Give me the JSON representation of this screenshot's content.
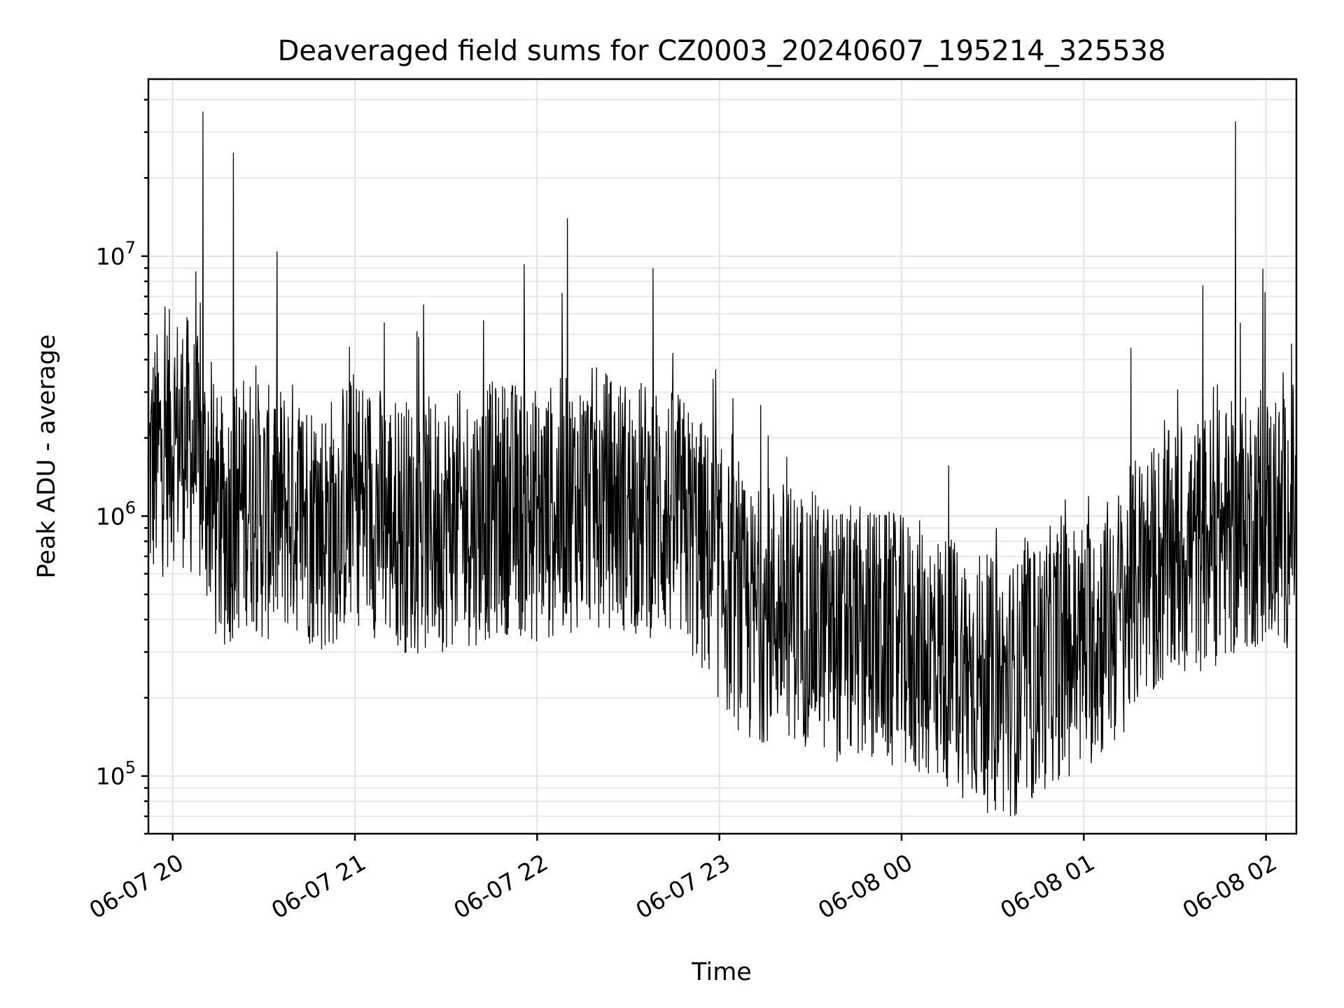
{
  "chart_data": {
    "type": "line",
    "title": "Deaveraged field sums for CZ0003_20240607_195214_325538",
    "xlabel": "Time",
    "ylabel": "Peak ADU - average",
    "yscale": "log",
    "ylim": [
      60000,
      48000000
    ],
    "xlim": [
      "2024-06-07 19:52",
      "2024-06-08 02:10"
    ],
    "grid": true,
    "x_ticks": [
      {
        "value": "2024-06-07 20:00",
        "label": "06-07 20"
      },
      {
        "value": "2024-06-07 21:00",
        "label": "06-07 21"
      },
      {
        "value": "2024-06-07 22:00",
        "label": "06-07 22"
      },
      {
        "value": "2024-06-07 23:00",
        "label": "06-07 23"
      },
      {
        "value": "2024-06-08 00:00",
        "label": "06-08 00"
      },
      {
        "value": "2024-06-08 01:00",
        "label": "06-08 01"
      },
      {
        "value": "2024-06-08 02:00",
        "label": "06-08 02"
      }
    ],
    "y_ticks": [
      {
        "value": 100000,
        "base": "10",
        "exp": "5"
      },
      {
        "value": 1000000,
        "base": "10",
        "exp": "6"
      },
      {
        "value": 10000000,
        "base": "10",
        "exp": "7"
      }
    ],
    "series": [
      {
        "color": "#000000",
        "x": [
          "2024-06-07 19:52:14",
          "2024-06-07 20:00",
          "2024-06-07 20:05",
          "2024-06-07 20:10",
          "2024-06-07 20:12",
          "2024-06-07 20:15",
          "2024-06-07 20:20",
          "2024-06-07 20:25",
          "2024-06-07 20:30",
          "2024-06-07 20:40",
          "2024-06-07 20:50",
          "2024-06-07 21:00",
          "2024-06-07 21:10",
          "2024-06-07 21:20",
          "2024-06-07 21:30",
          "2024-06-07 21:40",
          "2024-06-07 21:50",
          "2024-06-07 22:00",
          "2024-06-07 22:10",
          "2024-06-07 22:18",
          "2024-06-07 22:30",
          "2024-06-07 22:40",
          "2024-06-07 22:50",
          "2024-06-07 23:00",
          "2024-06-07 23:10",
          "2024-06-07 23:20",
          "2024-06-07 23:30",
          "2024-06-07 23:40",
          "2024-06-07 23:50",
          "2024-06-08 00:00",
          "2024-06-08 00:10",
          "2024-06-08 00:20",
          "2024-06-08 00:30",
          "2024-06-08 00:40",
          "2024-06-08 00:50",
          "2024-06-08 01:00",
          "2024-06-08 01:10",
          "2024-06-08 01:20",
          "2024-06-08 01:30",
          "2024-06-08 01:40",
          "2024-06-08 01:50",
          "2024-06-08 02:00",
          "2024-06-08 02:05",
          "2024-06-08 02:10"
        ],
        "y": [
          1500000,
          2100000,
          1900000,
          36000000,
          1300000,
          900000,
          25000000,
          1200000,
          1000000,
          1100000,
          900000,
          1200000,
          1000000,
          900000,
          950000,
          1000000,
          1100000,
          1000000,
          14000000,
          1200000,
          1100000,
          1050000,
          900000,
          600000,
          400000,
          450000,
          400000,
          350000,
          350000,
          320000,
          300000,
          260000,
          220000,
          220000,
          300000,
          320000,
          400000,
          600000,
          700000,
          800000,
          33000000,
          1000000,
          900000,
          1100000
        ]
      }
    ]
  }
}
